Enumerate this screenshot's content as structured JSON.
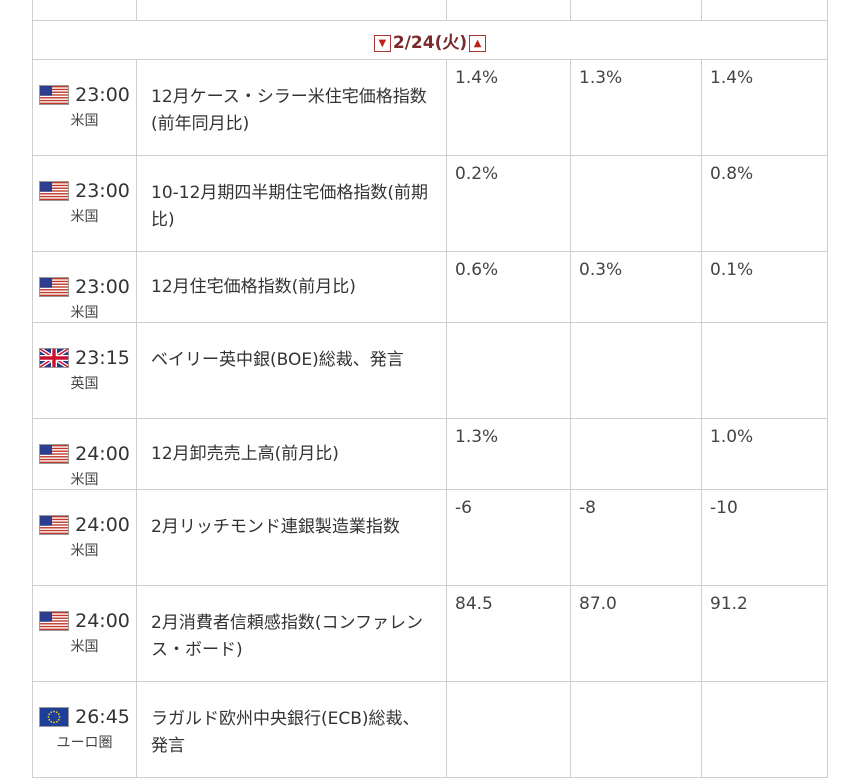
{
  "date_header": {
    "prev_arrow": "▼",
    "label": "2/24(火)",
    "next_arrow": "▲"
  },
  "flag_icons": {
    "us": "us-flag-icon",
    "uk": "uk-flag-icon",
    "eu": "eu-flag-icon"
  },
  "rows": [
    {
      "time": "23:00",
      "country": "米国",
      "flag": "us",
      "event": "12月ケース・シラー米住宅価格指数(前年同月比)",
      "prev": "1.4%",
      "forecast": "1.3%",
      "result": "1.4%"
    },
    {
      "time": "23:00",
      "country": "米国",
      "flag": "us",
      "event": "10-12月期四半期住宅価格指数(前期比)",
      "prev": "0.2%",
      "forecast": "",
      "result": "0.8%"
    },
    {
      "time": "23:00",
      "country": "米国",
      "flag": "us",
      "event": "12月住宅価格指数(前月比)",
      "prev": "0.6%",
      "forecast": "0.3%",
      "result": "0.1%"
    },
    {
      "time": "23:15",
      "country": "英国",
      "flag": "uk",
      "event": "ベイリー英中銀(BOE)総裁、発言",
      "prev": "",
      "forecast": "",
      "result": ""
    },
    {
      "time": "24:00",
      "country": "米国",
      "flag": "us",
      "event": "12月卸売売上高(前月比)",
      "prev": "1.3%",
      "forecast": "",
      "result": "1.0%"
    },
    {
      "time": "24:00",
      "country": "米国",
      "flag": "us",
      "event": "2月リッチモンド連銀製造業指数",
      "prev": "-6",
      "forecast": "-8",
      "result": "-10"
    },
    {
      "time": "24:00",
      "country": "米国",
      "flag": "us",
      "event": "2月消費者信頼感指数(コンファレンス・ボード)",
      "prev": "84.5",
      "forecast": "87.0",
      "result": "91.2"
    },
    {
      "time": "26:45",
      "country": "ユーロ圏",
      "flag": "eu",
      "event": "ラガルド欧州中央銀行(ECB)総裁、発言",
      "prev": "",
      "forecast": "",
      "result": ""
    }
  ]
}
